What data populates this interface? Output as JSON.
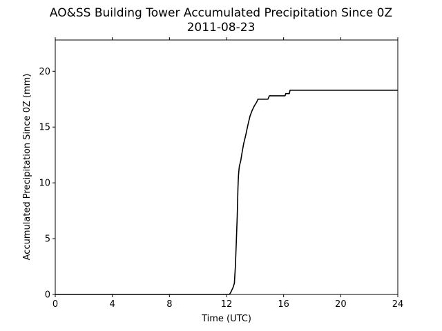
{
  "chart_data": {
    "type": "line",
    "title": "AO&SS Building Tower Accumulated Precipitation Since 0Z",
    "subtitle": "2011-08-23",
    "xlabel": "Time (UTC)",
    "ylabel": "Accumulated Precipitation Since 0Z (mm)",
    "xlim": [
      0,
      24
    ],
    "ylim": [
      0,
      22.8
    ],
    "xticks": [
      0,
      4,
      8,
      12,
      16,
      20,
      24
    ],
    "yticks": [
      0,
      5,
      10,
      15,
      20
    ],
    "grid": false,
    "series": [
      {
        "color": "#000000",
        "x": [
          0,
          12.2,
          12.3,
          12.45,
          12.5,
          12.55,
          12.62,
          12.68,
          12.75,
          12.8,
          12.83,
          12.86,
          12.9,
          13.0,
          13.1,
          13.2,
          13.35,
          13.5,
          13.65,
          13.8,
          13.95,
          14.1,
          14.2,
          14.3,
          14.5,
          14.9,
          15.0,
          16.1,
          16.15,
          16.4,
          16.45,
          24
        ],
        "y": [
          0,
          0,
          0.2,
          0.6,
          0.8,
          1.0,
          2.5,
          4.5,
          7.0,
          9.5,
          10.5,
          11.0,
          11.5,
          12.0,
          12.8,
          13.5,
          14.3,
          15.2,
          16.0,
          16.5,
          16.9,
          17.2,
          17.5,
          17.5,
          17.5,
          17.5,
          17.8,
          17.8,
          18.0,
          18.0,
          18.3,
          18.3
        ]
      }
    ]
  }
}
